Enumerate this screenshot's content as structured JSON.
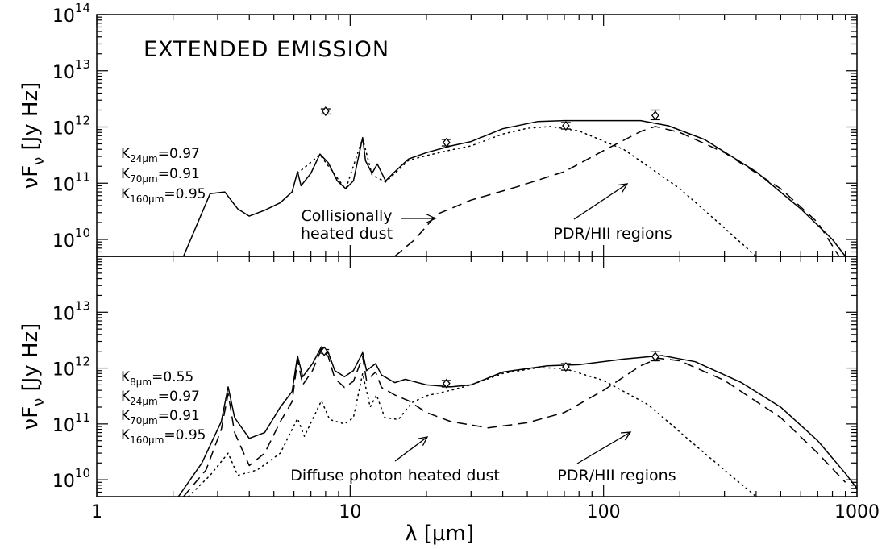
{
  "figure": {
    "xlabel_symbol": "λ",
    "xlabel_units": "[μm]",
    "ylabel_symbol": "νF",
    "ylabel_sub": "ν",
    "ylabel_units": "[Jy Hz]"
  },
  "chart_data": [
    {
      "type": "line",
      "title": "EXTENDED EMISSION",
      "xscale": "log",
      "yscale": "log",
      "xlim": [
        1,
        1000
      ],
      "ylim": [
        5000000000.0,
        100000000000000.0
      ],
      "x_ticks": [
        1,
        10,
        100,
        1000
      ],
      "x_tick_labels": [
        "1",
        "10",
        "100",
        "1000"
      ],
      "y_ticks": [
        10000000000.0,
        100000000000.0,
        1000000000000.0,
        10000000000000.0,
        100000000000000.0
      ],
      "y_tick_base": "10",
      "y_tick_exponents": [
        "10",
        "11",
        "12",
        "13",
        "14"
      ],
      "kappa": [
        {
          "base": "K",
          "sub": "24μm",
          "value": "=0.97"
        },
        {
          "base": "K",
          "sub": "70μm",
          "value": "=0.91"
        },
        {
          "base": "K",
          "sub": "160μm",
          "value": "=0.95"
        }
      ],
      "annotations": [
        {
          "lines": [
            "Collisionally",
            "heated dust"
          ]
        },
        {
          "lines": [
            "PDR/HII regions"
          ]
        }
      ],
      "series": [
        {
          "style": "solid",
          "points": [
            [
              2.2,
              5000000000.0
            ],
            [
              2.8,
              65000000000.0
            ],
            [
              3.2,
              70000000000.0
            ],
            [
              3.6,
              35000000000.0
            ],
            [
              4,
              26000000000.0
            ],
            [
              4.6,
              33000000000.0
            ],
            [
              5.3,
              45000000000.0
            ],
            [
              5.9,
              70000000000.0
            ],
            [
              6.2,
              160000000000.0
            ],
            [
              6.4,
              90000000000.0
            ],
            [
              7,
              150000000000.0
            ],
            [
              7.6,
              330000000000.0
            ],
            [
              8.2,
              230000000000.0
            ],
            [
              8.9,
              110000000000.0
            ],
            [
              9.6,
              80000000000.0
            ],
            [
              10.3,
              110000000000.0
            ],
            [
              11.2,
              650000000000.0
            ],
            [
              11.5,
              250000000000.0
            ],
            [
              12.2,
              150000000000.0
            ],
            [
              12.8,
              220000000000.0
            ],
            [
              13.8,
              110000000000.0
            ],
            [
              15,
              160000000000.0
            ],
            [
              17,
              270000000000.0
            ],
            [
              20,
              350000000000.0
            ],
            [
              25,
              460000000000.0
            ],
            [
              30,
              550000000000.0
            ],
            [
              40,
              930000000000.0
            ],
            [
              55,
              1250000000000.0
            ],
            [
              70,
              1300000000000.0
            ],
            [
              100,
              1300000000000.0
            ],
            [
              140,
              1300000000000.0
            ],
            [
              180,
              1050000000000.0
            ],
            [
              250,
              600000000000.0
            ],
            [
              400,
              160000000000.0
            ],
            [
              600,
              35000000000.0
            ],
            [
              800,
              10000000000.0
            ],
            [
              900,
              5000000000.0
            ]
          ]
        },
        {
          "style": "dotted",
          "points": [
            [
              6.2,
              150000000000.0
            ],
            [
              7.6,
              320000000000.0
            ],
            [
              9.6,
              78000000000.0
            ],
            [
              11.2,
              630000000000.0
            ],
            [
              12.2,
              140000000000.0
            ],
            [
              13.8,
              105000000000.0
            ],
            [
              15,
              150000000000.0
            ],
            [
              17,
              255000000000.0
            ],
            [
              20,
              310000000000.0
            ],
            [
              25,
              390000000000.0
            ],
            [
              30,
              460000000000.0
            ],
            [
              40,
              750000000000.0
            ],
            [
              50,
              950000000000.0
            ],
            [
              62,
              1020000000000.0
            ],
            [
              80,
              850000000000.0
            ],
            [
              120,
              400000000000.0
            ],
            [
              200,
              80000000000.0
            ],
            [
              300,
              16000000000.0
            ],
            [
              400,
              5000000000.0
            ]
          ]
        },
        {
          "style": "dashed",
          "points": [
            [
              15,
              5000000000.0
            ],
            [
              18,
              10000000000.0
            ],
            [
              22,
              28000000000.0
            ],
            [
              30,
              50000000000.0
            ],
            [
              45,
              85000000000.0
            ],
            [
              70,
              160000000000.0
            ],
            [
              100,
              380000000000.0
            ],
            [
              140,
              830000000000.0
            ],
            [
              160,
              1020000000000.0
            ],
            [
              200,
              800000000000.0
            ],
            [
              300,
              350000000000.0
            ],
            [
              500,
              80000000000.0
            ],
            [
              700,
              20000000000.0
            ],
            [
              850,
              5000000000.0
            ]
          ]
        }
      ],
      "observations": [
        {
          "x": 8,
          "y": 1900000000000.0,
          "yerr_low": 1700000000000.0,
          "yerr_high": 2100000000000.0
        },
        {
          "x": 24,
          "y": 530000000000.0,
          "yerr_low": 460000000000.0,
          "yerr_high": 600000000000.0
        },
        {
          "x": 71,
          "y": 1050000000000.0,
          "yerr_low": 920000000000.0,
          "yerr_high": 1200000000000.0
        },
        {
          "x": 160,
          "y": 1600000000000.0,
          "yerr_low": 1350000000000.0,
          "yerr_high": 2000000000000.0
        }
      ]
    },
    {
      "type": "line",
      "title": "",
      "xscale": "log",
      "yscale": "log",
      "xlim": [
        1,
        1000
      ],
      "ylim": [
        5000000000.0,
        100000000000000.0
      ],
      "x_ticks": [
        1,
        10,
        100,
        1000
      ],
      "x_tick_labels": [
        "1",
        "10",
        "100",
        "1000"
      ],
      "y_ticks": [
        10000000000.0,
        100000000000.0,
        1000000000000.0,
        10000000000000.0
      ],
      "y_tick_base": "10",
      "y_tick_exponents": [
        "10",
        "11",
        "12",
        "13"
      ],
      "kappa": [
        {
          "base": "K",
          "sub": "8μm",
          "value": "=0.55"
        },
        {
          "base": "K",
          "sub": "24μm",
          "value": "=0.97"
        },
        {
          "base": "K",
          "sub": "70μm",
          "value": "=0.91"
        },
        {
          "base": "K",
          "sub": "160μm",
          "value": "=0.95"
        }
      ],
      "annotations": [
        {
          "lines": [
            "Diffuse photon heated dust"
          ]
        },
        {
          "lines": [
            "PDR/HII regions"
          ]
        }
      ],
      "series": [
        {
          "style": "solid",
          "points": [
            [
              2.1,
              5000000000.0
            ],
            [
              2.6,
              20000000000.0
            ],
            [
              3.1,
              110000000000.0
            ],
            [
              3.3,
              460000000000.0
            ],
            [
              3.5,
              130000000000.0
            ],
            [
              4,
              55000000000.0
            ],
            [
              4.6,
              70000000000.0
            ],
            [
              5.3,
              200000000000.0
            ],
            [
              5.9,
              380000000000.0
            ],
            [
              6.2,
              1650000000000.0
            ],
            [
              6.5,
              700000000000.0
            ],
            [
              7.1,
              1200000000000.0
            ],
            [
              7.7,
              2400000000000.0
            ],
            [
              8.2,
              1900000000000.0
            ],
            [
              8.7,
              900000000000.0
            ],
            [
              9.5,
              700000000000.0
            ],
            [
              10.3,
              900000000000.0
            ],
            [
              11.2,
              1900000000000.0
            ],
            [
              11.6,
              900000000000.0
            ],
            [
              12.6,
              1200000000000.0
            ],
            [
              13.3,
              750000000000.0
            ],
            [
              15,
              550000000000.0
            ],
            [
              16.5,
              630000000000.0
            ],
            [
              20,
              500000000000.0
            ],
            [
              25,
              460000000000.0
            ],
            [
              30,
              500000000000.0
            ],
            [
              40,
              850000000000.0
            ],
            [
              60,
              1100000000000.0
            ],
            [
              80,
              1150000000000.0
            ],
            [
              120,
              1450000000000.0
            ],
            [
              170,
              1680000000000.0
            ],
            [
              230,
              1300000000000.0
            ],
            [
              350,
              550000000000.0
            ],
            [
              500,
              200000000000.0
            ],
            [
              700,
              50000000000.0
            ],
            [
              900,
              13000000000.0
            ],
            [
              1000,
              7000000000.0
            ]
          ]
        },
        {
          "style": "dashed",
          "points": [
            [
              2.2,
              5000000000.0
            ],
            [
              2.7,
              15000000000.0
            ],
            [
              3.1,
              80000000000.0
            ],
            [
              3.3,
              350000000000.0
            ],
            [
              3.5,
              70000000000.0
            ],
            [
              4,
              18000000000.0
            ],
            [
              4.6,
              30000000000.0
            ],
            [
              5.3,
              110000000000.0
            ],
            [
              5.9,
              250000000000.0
            ],
            [
              6.2,
              1400000000000.0
            ],
            [
              6.5,
              500000000000.0
            ],
            [
              7.1,
              900000000000.0
            ],
            [
              7.7,
              2200000000000.0
            ],
            [
              8.2,
              1600000000000.0
            ],
            [
              8.7,
              650000000000.0
            ],
            [
              9.5,
              450000000000.0
            ],
            [
              10.3,
              580000000000.0
            ],
            [
              11.2,
              1600000000000.0
            ],
            [
              11.6,
              600000000000.0
            ],
            [
              12.6,
              850000000000.0
            ],
            [
              13.3,
              450000000000.0
            ],
            [
              15,
              330000000000.0
            ],
            [
              17,
              260000000000.0
            ],
            [
              20,
              160000000000.0
            ],
            [
              25,
              110000000000.0
            ],
            [
              35,
              85000000000.0
            ],
            [
              50,
              105000000000.0
            ],
            [
              70,
              160000000000.0
            ],
            [
              100,
              400000000000.0
            ],
            [
              140,
              1100000000000.0
            ],
            [
              165,
              1500000000000.0
            ],
            [
              200,
              1350000000000.0
            ],
            [
              300,
              600000000000.0
            ],
            [
              500,
              130000000000.0
            ],
            [
              700,
              30000000000.0
            ],
            [
              900,
              9000000000.0
            ]
          ]
        },
        {
          "style": "dotted",
          "points": [
            [
              2.3,
              5000000000.0
            ],
            [
              2.8,
              12000000000.0
            ],
            [
              3.3,
              30000000000.0
            ],
            [
              3.6,
              12000000000.0
            ],
            [
              4.3,
              15000000000.0
            ],
            [
              5.3,
              30000000000.0
            ],
            [
              6.2,
              125000000000.0
            ],
            [
              6.6,
              60000000000.0
            ],
            [
              7.7,
              260000000000.0
            ],
            [
              8.3,
              120000000000.0
            ],
            [
              9.5,
              100000000000.0
            ],
            [
              10.3,
              130000000000.0
            ],
            [
              11.2,
              800000000000.0
            ],
            [
              12,
              200000000000.0
            ],
            [
              12.7,
              330000000000.0
            ],
            [
              13.7,
              130000000000.0
            ],
            [
              15.5,
              120000000000.0
            ],
            [
              17.5,
              240000000000.0
            ],
            [
              20,
              320000000000.0
            ],
            [
              25,
              400000000000.0
            ],
            [
              30,
              500000000000.0
            ],
            [
              40,
              800000000000.0
            ],
            [
              55,
              1020000000000.0
            ],
            [
              70,
              980000000000.0
            ],
            [
              100,
              600000000000.0
            ],
            [
              150,
              220000000000.0
            ],
            [
              250,
              30000000000.0
            ],
            [
              400,
              5000000000.0
            ]
          ]
        }
      ],
      "observations": [
        {
          "x": 7.9,
          "y": 2000000000000.0,
          "yerr_low": 1850000000000.0,
          "yerr_high": 2150000000000.0
        },
        {
          "x": 24,
          "y": 530000000000.0,
          "yerr_low": 460000000000.0,
          "yerr_high": 600000000000.0
        },
        {
          "x": 71,
          "y": 1050000000000.0,
          "yerr_low": 920000000000.0,
          "yerr_high": 1200000000000.0
        },
        {
          "x": 160,
          "y": 1600000000000.0,
          "yerr_low": 1350000000000.0,
          "yerr_high": 2000000000000.0
        }
      ]
    }
  ]
}
